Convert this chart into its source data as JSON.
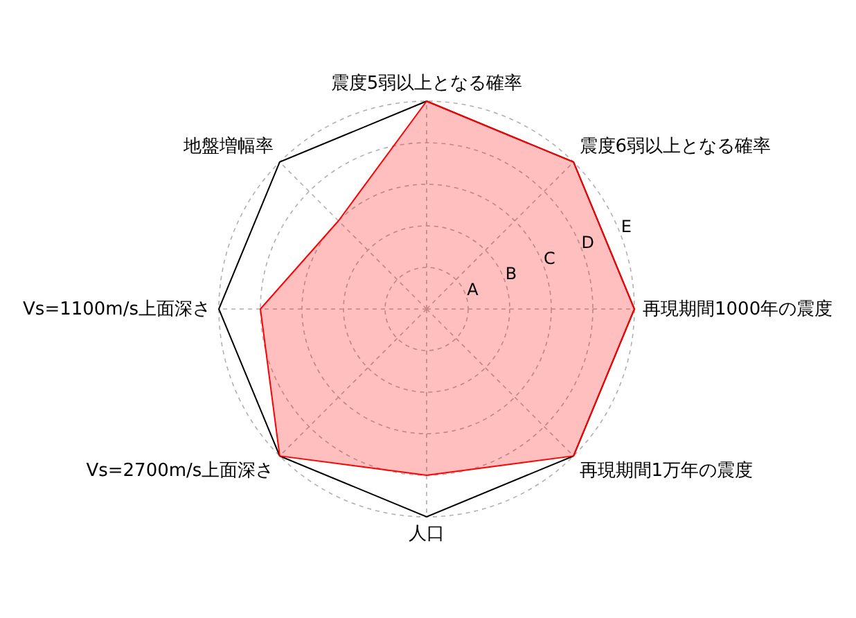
{
  "chart_data": {
    "type": "radar",
    "categories": [
      "震度5弱以上となる確率",
      "震度6弱以上となる確率",
      "再現期間1000年の震度",
      "再現期間1万年の震度",
      "人口",
      "Vs=2700m/s上面深さ",
      "Vs=1100m/s上面深さ",
      "地盤増幅率"
    ],
    "series": [
      {
        "color": "#ff0000",
        "values": [
          5,
          5,
          5,
          5,
          4,
          5,
          4,
          3
        ]
      }
    ],
    "ylim": [
      0,
      5
    ],
    "yticks": [
      {
        "value": 1,
        "label": "A"
      },
      {
        "value": 2,
        "label": "B"
      },
      {
        "value": 3,
        "label": "C"
      },
      {
        "value": 4,
        "label": "D"
      },
      {
        "value": 5,
        "label": "E"
      }
    ],
    "grid": true
  }
}
